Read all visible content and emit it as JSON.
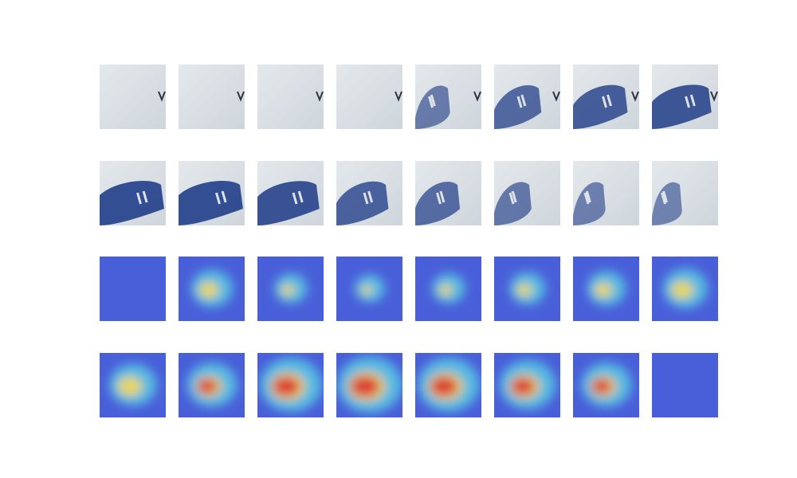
{
  "figure": {
    "description_kind": "grid of video frames with activation heatmap overlays",
    "rows": [
      {
        "kind": "raw-frames",
        "frames": [
          {
            "hand": 0,
            "cursor": 1
          },
          {
            "hand": 0,
            "cursor": 1
          },
          {
            "hand": 0,
            "cursor": 1
          },
          {
            "hand": 0,
            "cursor": 1
          },
          {
            "hand": 0.35,
            "cursor": 1
          },
          {
            "hand": 0.6,
            "cursor": 1
          },
          {
            "hand": 0.75,
            "cursor": 1
          },
          {
            "hand": 0.85,
            "cursor": 1
          }
        ]
      },
      {
        "kind": "raw-frames",
        "frames": [
          {
            "hand": 0.95,
            "cursor": 0
          },
          {
            "hand": 0.95,
            "cursor": 0
          },
          {
            "hand": 0.9,
            "cursor": 0
          },
          {
            "hand": 0.7,
            "cursor": 0
          },
          {
            "hand": 0.55,
            "cursor": 0
          },
          {
            "hand": 0.4,
            "cursor": 0
          },
          {
            "hand": 0.3,
            "cursor": 0
          },
          {
            "hand": 0.25,
            "cursor": 0
          }
        ]
      },
      {
        "kind": "heatmap-overlay",
        "frames": [
          {
            "heat": 0.0
          },
          {
            "heat": 0.45
          },
          {
            "heat": 0.3
          },
          {
            "heat": 0.25
          },
          {
            "heat": 0.3
          },
          {
            "heat": 0.35
          },
          {
            "heat": 0.4
          },
          {
            "heat": 0.5
          }
        ]
      },
      {
        "kind": "heatmap-overlay",
        "frames": [
          {
            "heat": 0.55
          },
          {
            "heat": 0.6
          },
          {
            "heat": 0.8
          },
          {
            "heat": 0.85
          },
          {
            "heat": 0.8
          },
          {
            "heat": 0.7
          },
          {
            "heat": 0.6
          },
          {
            "heat": 0.1
          }
        ]
      }
    ],
    "colors": {
      "frame_bg": "#cfd6db",
      "frame_light": "#e3e8ec",
      "glove": "#2f4a8f",
      "glove_dark": "#1d2f66",
      "heat_cold": "#3a52d6",
      "heat_cool": "#46b4e0",
      "heat_mid": "#e6d34a",
      "heat_hot": "#d9302a"
    }
  }
}
